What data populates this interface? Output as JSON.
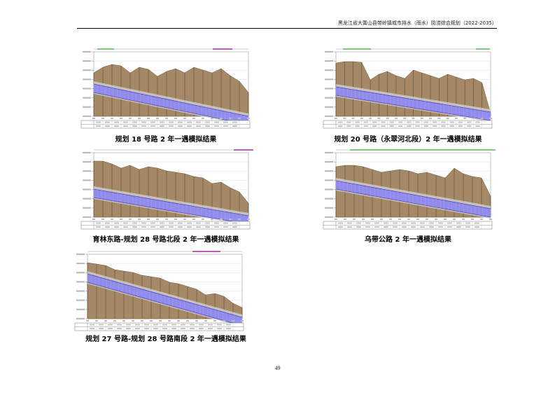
{
  "header": {
    "title": "黑龙江省大箐山县带岭镇城市排水（雨水）防涝综合规划（2022-2035）"
  },
  "figures": [
    {
      "id": "fig1",
      "caption": "规划 18 号路 2 年一遇模拟结果"
    },
    {
      "id": "fig2",
      "caption": "规划 20 号路（永翠河北段）2 年一遇模拟结果"
    },
    {
      "id": "fig3",
      "caption": "育林东路-规划 28 号路北段 2 年一遇模拟结果"
    },
    {
      "id": "fig4",
      "caption": "乌带公路 2 年一遇模拟结果"
    },
    {
      "id": "fig5",
      "caption": "规划 27 号路-规划 28 号路南段 2 年一遇模拟结果"
    }
  ],
  "page_number": "49",
  "colors": {
    "ground": "#a58966",
    "pipe": "#8b86f0",
    "pipe_dark": "#4a44c8",
    "grid": "#d6d6d6",
    "header_rule": "#000000"
  }
}
